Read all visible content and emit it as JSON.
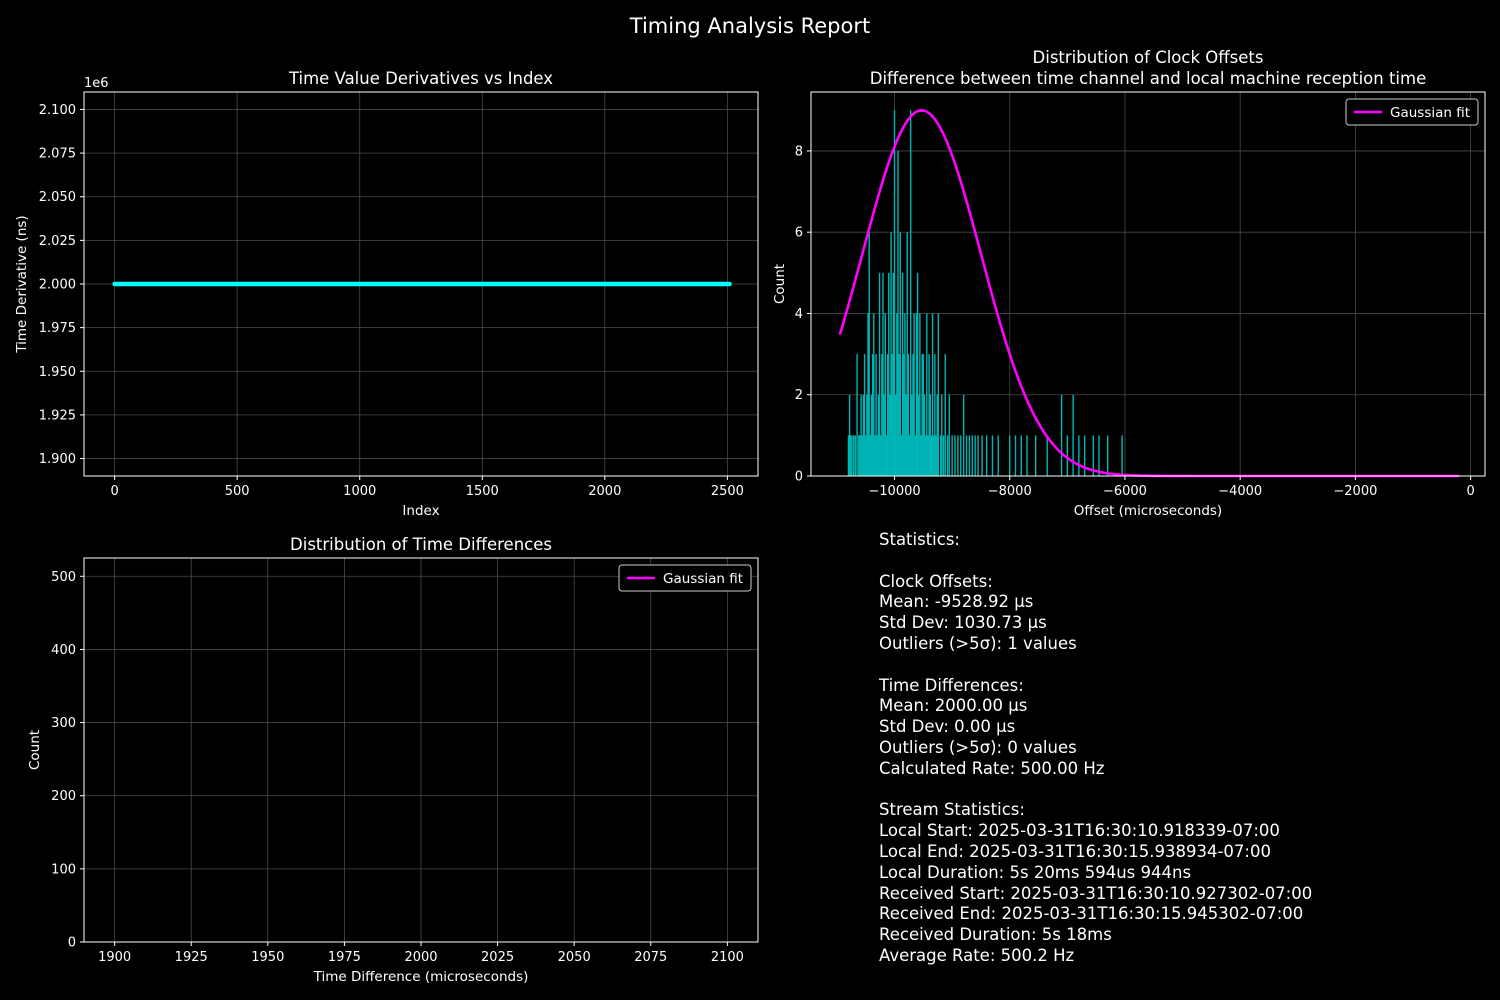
{
  "figure": {
    "suptitle": "Timing Analysis Report"
  },
  "colors": {
    "background": "#000000",
    "derivative": "#00ffff",
    "histogram": "#00b5b5",
    "fit": "#ff00ff",
    "grid": "#4a4a4a",
    "axes": "#ffffff"
  },
  "chart_data": [
    {
      "id": "derivatives",
      "type": "line",
      "title": "Time Value Derivatives vs Index",
      "xlabel": "Index",
      "ylabel": "Time Derivative (ns)",
      "y_offset_label": "1e6",
      "xlim": [
        -125,
        2625
      ],
      "ylim": [
        1.89,
        2.11
      ],
      "xticks": [
        0,
        500,
        1000,
        1500,
        2000,
        2500
      ],
      "yticks": [
        1.9,
        1.925,
        1.95,
        1.975,
        2.0,
        2.025,
        2.05,
        2.075,
        2.1
      ],
      "ytick_labels": [
        "1.900",
        "1.925",
        "1.950",
        "1.975",
        "2.000",
        "2.025",
        "2.050",
        "2.075",
        "2.100"
      ],
      "series": [
        {
          "x": [
            0,
            2509
          ],
          "values": [
            2.0,
            2.0
          ]
        }
      ],
      "grid": true
    },
    {
      "id": "clock_offsets",
      "type": "histogram",
      "title": "Distribution of Clock Offsets",
      "subtitle": "Difference between time channel and local machine reception time",
      "xlabel": "Offset (microseconds)",
      "ylabel": "Count",
      "xlim": [
        -11450,
        250
      ],
      "ylim": [
        0,
        9.45
      ],
      "xticks": [
        -10000,
        -8000,
        -6000,
        -4000,
        -2000,
        0
      ],
      "xtick_labels": [
        "−10000",
        "−8000",
        "−6000",
        "−4000",
        "−2000",
        "0"
      ],
      "yticks": [
        0,
        2,
        4,
        6,
        8
      ],
      "ytick_labels": [
        "0",
        "2",
        "4",
        "6",
        "8"
      ],
      "legend": {
        "label": "Gaussian fit",
        "placement": "top-right"
      },
      "gaussian_fit": {
        "mean": -9528.92,
        "std": 1030.73,
        "peak": 9.0,
        "range": [
          -10950,
          -200
        ]
      },
      "bars": [
        [
          -10800,
          1
        ],
        [
          -10780,
          2
        ],
        [
          -10760,
          1
        ],
        [
          -10740,
          1
        ],
        [
          -10710,
          1
        ],
        [
          -10680,
          1
        ],
        [
          -10650,
          3
        ],
        [
          -10620,
          1
        ],
        [
          -10600,
          1
        ],
        [
          -10580,
          2
        ],
        [
          -10560,
          1
        ],
        [
          -10540,
          2
        ],
        [
          -10520,
          3
        ],
        [
          -10500,
          1
        ],
        [
          -10480,
          2
        ],
        [
          -10460,
          4
        ],
        [
          -10440,
          6
        ],
        [
          -10420,
          1
        ],
        [
          -10400,
          2
        ],
        [
          -10380,
          3
        ],
        [
          -10360,
          4
        ],
        [
          -10340,
          1
        ],
        [
          -10320,
          3
        ],
        [
          -10300,
          1
        ],
        [
          -10280,
          2
        ],
        [
          -10260,
          5
        ],
        [
          -10240,
          1
        ],
        [
          -10220,
          3
        ],
        [
          -10200,
          5
        ],
        [
          -10180,
          2
        ],
        [
          -10160,
          4
        ],
        [
          -10140,
          1
        ],
        [
          -10120,
          3
        ],
        [
          -10100,
          5
        ],
        [
          -10080,
          2
        ],
        [
          -10060,
          6
        ],
        [
          -10040,
          3
        ],
        [
          -10020,
          5
        ],
        [
          -10000,
          9
        ],
        [
          -9980,
          2
        ],
        [
          -9960,
          4
        ],
        [
          -9940,
          8
        ],
        [
          -9920,
          3
        ],
        [
          -9900,
          6
        ],
        [
          -9880,
          1
        ],
        [
          -9860,
          5
        ],
        [
          -9840,
          3
        ],
        [
          -9820,
          4
        ],
        [
          -9800,
          2
        ],
        [
          -9780,
          6
        ],
        [
          -9760,
          3
        ],
        [
          -9740,
          1
        ],
        [
          -9720,
          9
        ],
        [
          -9700,
          2
        ],
        [
          -9680,
          3
        ],
        [
          -9660,
          4
        ],
        [
          -9640,
          1
        ],
        [
          -9620,
          4
        ],
        [
          -9600,
          5
        ],
        [
          -9580,
          2
        ],
        [
          -9560,
          4
        ],
        [
          -9540,
          1
        ],
        [
          -9520,
          3
        ],
        [
          -9500,
          3
        ],
        [
          -9480,
          2
        ],
        [
          -9460,
          1
        ],
        [
          -9440,
          4
        ],
        [
          -9420,
          1
        ],
        [
          -9400,
          3
        ],
        [
          -9380,
          2
        ],
        [
          -9360,
          1
        ],
        [
          -9340,
          4
        ],
        [
          -9320,
          1
        ],
        [
          -9300,
          3
        ],
        [
          -9280,
          1
        ],
        [
          -9260,
          2
        ],
        [
          -9240,
          4
        ],
        [
          -9200,
          1
        ],
        [
          -9180,
          2
        ],
        [
          -9150,
          1
        ],
        [
          -9120,
          3
        ],
        [
          -9080,
          1
        ],
        [
          -9050,
          2
        ],
        [
          -9000,
          1
        ],
        [
          -8950,
          1
        ],
        [
          -8900,
          1
        ],
        [
          -8850,
          1
        ],
        [
          -8800,
          2
        ],
        [
          -8750,
          1
        ],
        [
          -8700,
          1
        ],
        [
          -8650,
          1
        ],
        [
          -8600,
          1
        ],
        [
          -8550,
          1
        ],
        [
          -8480,
          1
        ],
        [
          -8400,
          1
        ],
        [
          -8300,
          1
        ],
        [
          -8200,
          1
        ],
        [
          -8000,
          1
        ],
        [
          -7900,
          1
        ],
        [
          -7800,
          1
        ],
        [
          -7700,
          1
        ],
        [
          -7550,
          1
        ],
        [
          -7350,
          1
        ],
        [
          -7100,
          2
        ],
        [
          -7000,
          1
        ],
        [
          -6900,
          2
        ],
        [
          -6800,
          1
        ],
        [
          -6700,
          1
        ],
        [
          -6550,
          1
        ],
        [
          -6450,
          1
        ],
        [
          -6300,
          1
        ],
        [
          -6050,
          1
        ]
      ],
      "grid": true
    },
    {
      "id": "time_differences",
      "type": "histogram",
      "title": "Distribution of Time Differences",
      "xlabel": "Time Difference (microseconds)",
      "ylabel": "Count",
      "xlim": [
        1890,
        2110
      ],
      "ylim": [
        0,
        525
      ],
      "xticks": [
        1900,
        1925,
        1950,
        1975,
        2000,
        2025,
        2050,
        2075,
        2100
      ],
      "xtick_labels": [
        "1900",
        "1925",
        "1950",
        "1975",
        "2000",
        "2025",
        "2050",
        "2075",
        "2100"
      ],
      "yticks": [
        0,
        100,
        200,
        300,
        400,
        500
      ],
      "ytick_labels": [
        "0",
        "100",
        "200",
        "300",
        "400",
        "500"
      ],
      "legend": {
        "label": "Gaussian fit",
        "placement": "top-right"
      },
      "grid": true
    }
  ],
  "stats": {
    "lines": [
      "Statistics:",
      "",
      "Clock Offsets:",
      "Mean: -9528.92 μs",
      "Std Dev: 1030.73 μs",
      "Outliers (>5σ): 1 values",
      "",
      "Time Differences:",
      "Mean: 2000.00 μs",
      "Std Dev: 0.00 μs",
      "Outliers (>5σ): 0 values",
      "Calculated Rate: 500.00 Hz",
      "",
      "Stream Statistics:",
      "Local Start: 2025-03-31T16:30:10.918339-07:00",
      "Local End: 2025-03-31T16:30:15.938934-07:00",
      "Local Duration: 5s 20ms 594us 944ns",
      "Received Start: 2025-03-31T16:30:10.927302-07:00",
      "Received End: 2025-03-31T16:30:15.945302-07:00",
      "Received Duration: 5s 18ms",
      "Average Rate: 500.2 Hz"
    ]
  }
}
